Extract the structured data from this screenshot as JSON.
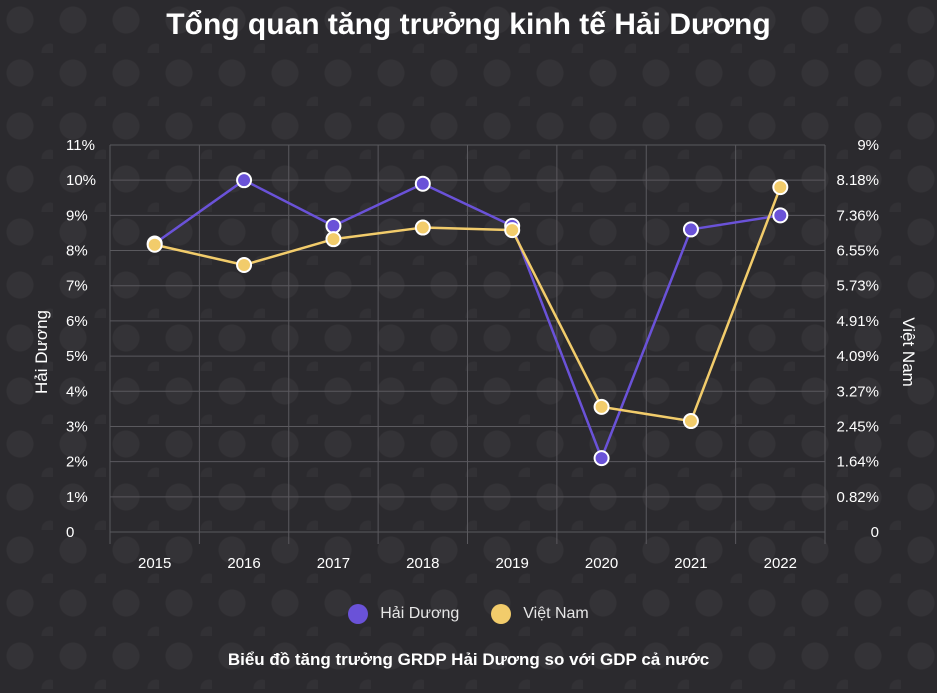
{
  "title": "Tổng quan tăng trưởng kinh tế Hải Dương",
  "caption": "Biểu đồ tăng trưởng GRDP Hải Dương so với GDP cả nước",
  "colors": {
    "hai_duong": "#6a52d8",
    "viet_nam": "#f2cc6b",
    "grid": "#5a595e"
  },
  "chart_data": {
    "type": "line",
    "categories": [
      "2015",
      "2016",
      "2017",
      "2018",
      "2019",
      "2020",
      "2021",
      "2022"
    ],
    "series": [
      {
        "name": "Hải Dương",
        "axis": "left",
        "values": [
          8.2,
          10.0,
          8.7,
          9.9,
          8.7,
          2.1,
          8.6,
          9.0
        ]
      },
      {
        "name": "Việt Nam",
        "axis": "right",
        "values": [
          6.68,
          6.21,
          6.81,
          7.08,
          7.02,
          2.91,
          2.58,
          8.02
        ]
      }
    ],
    "ylabel": "Hải Dương",
    "y2label": "Việt Nam",
    "ylim": [
      0,
      11
    ],
    "y2lim": [
      0,
      9
    ],
    "yticks": [
      "0",
      "1%",
      "2%",
      "3%",
      "4%",
      "5%",
      "6%",
      "7%",
      "8%",
      "9%",
      "10%",
      "11%"
    ],
    "y2ticks": [
      "0",
      "0.82%",
      "1.64%",
      "2.45%",
      "3.27%",
      "4.09%",
      "4.91%",
      "5.73%",
      "6.55%",
      "7.36%",
      "8.18%",
      "9%"
    ],
    "grid": true,
    "legend": "bottom"
  }
}
